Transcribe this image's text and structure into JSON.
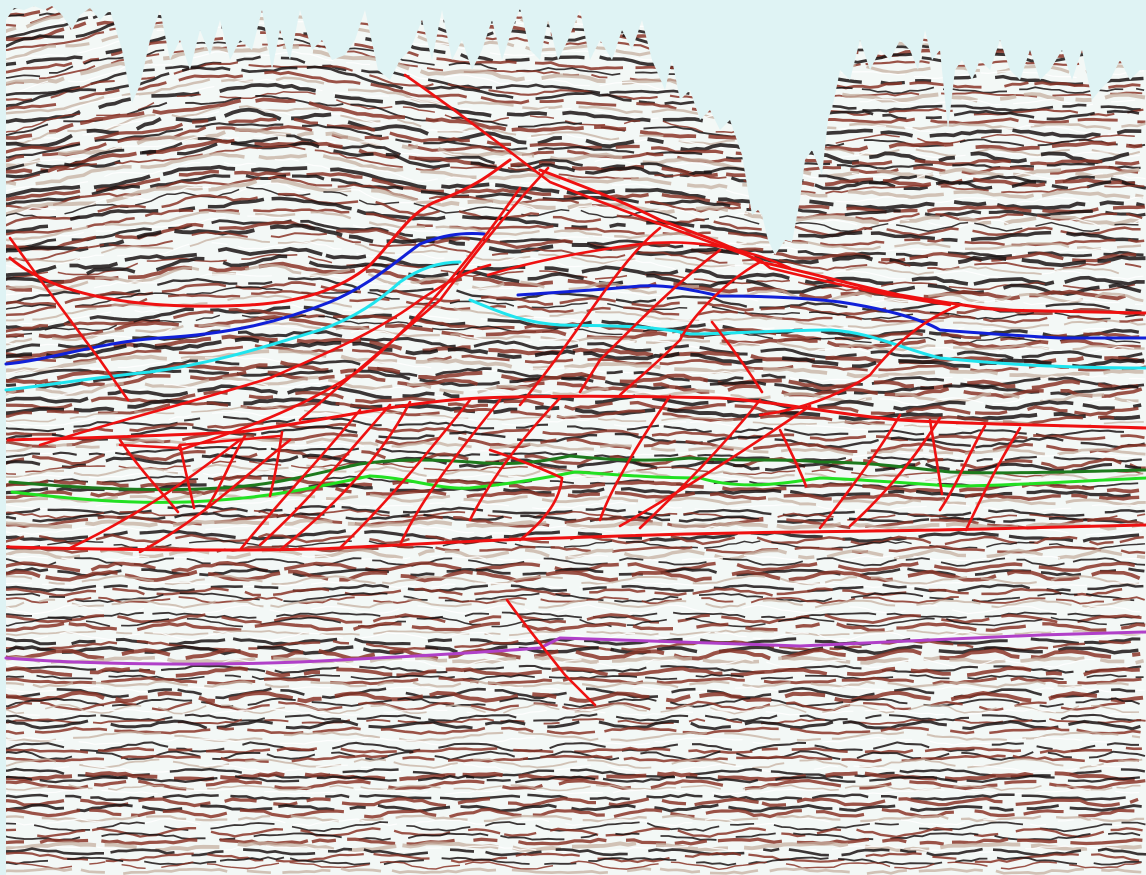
{
  "colors": {
    "background": "#dff3f4",
    "seismic_dark": "#1a1414",
    "seismic_red": "#8a3528",
    "seismic_tan": "#c6b0a0",
    "seismic_light": "#f3f8f6",
    "seismic_white": "#ffffff",
    "fault": "#ee1111",
    "horizon_red": "#ee1111",
    "horizon_blue": "#1020d8",
    "horizon_cyan": "#20e4ee",
    "horizon_dark_green": "#1d7a1d",
    "horizon_green": "#22e022",
    "horizon_purple": "#b040c8"
  }
}
